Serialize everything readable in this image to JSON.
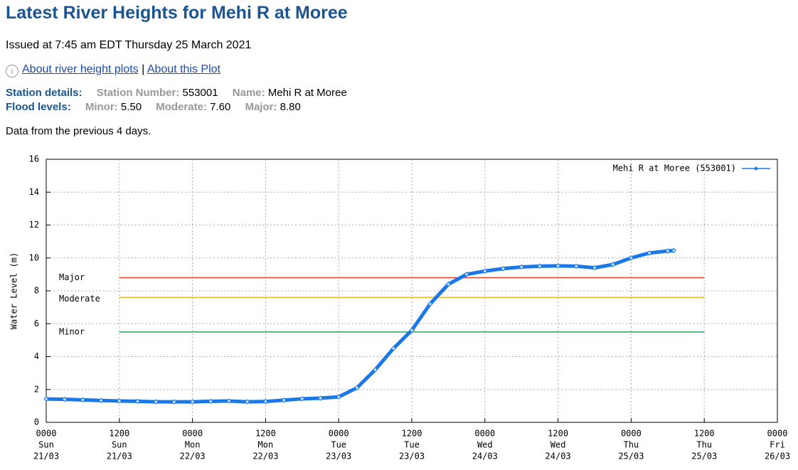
{
  "header": {
    "title": "Latest River Heights for Mehi R at Moree",
    "issued": "Issued at 7:45 am EDT Thursday 25 March 2021",
    "links": [
      "About river height plots",
      "About this Plot"
    ],
    "separator": "|"
  },
  "station": {
    "label": "Station details:",
    "number_label": "Station Number:",
    "number": "553001",
    "name_label": "Name:",
    "name": "Mehi R at Moree"
  },
  "flood_levels": {
    "label": "Flood levels:",
    "levels": [
      {
        "name": "Minor:",
        "value": "5.50"
      },
      {
        "name": "Moderate:",
        "value": "7.60"
      },
      {
        "name": "Major:",
        "value": "8.80"
      }
    ]
  },
  "note": "Data from the previous 4 days.",
  "chart_data": {
    "type": "line",
    "y_label": "Water Level (m)",
    "x": [
      "21/03 0000",
      "21/03 0300",
      "21/03 0600",
      "21/03 0900",
      "21/03 1200",
      "21/03 1500",
      "21/03 1800",
      "21/03 2100",
      "22/03 0000",
      "22/03 0300",
      "22/03 0600",
      "22/03 0900",
      "22/03 1200",
      "22/03 1500",
      "22/03 1800",
      "22/03 2100",
      "23/03 0000",
      "23/03 0300",
      "23/03 0600",
      "23/03 0900",
      "23/03 1200",
      "23/03 1500",
      "23/03 1800",
      "23/03 2100",
      "24/03 0000",
      "24/03 0300",
      "24/03 0600",
      "24/03 0900",
      "24/03 1200",
      "24/03 1500",
      "24/03 1800",
      "24/03 2100",
      "25/03 0000",
      "25/03 0300",
      "25/03 0600",
      "25/03 0700"
    ],
    "series": [
      {
        "name": "Mehi R at Moree (553001)",
        "color": "#1a78e8",
        "values": [
          1.42,
          1.4,
          1.37,
          1.33,
          1.3,
          1.28,
          1.25,
          1.25,
          1.25,
          1.28,
          1.3,
          1.25,
          1.27,
          1.35,
          1.43,
          1.47,
          1.55,
          2.1,
          3.2,
          4.5,
          5.6,
          7.2,
          8.4,
          9.0,
          9.2,
          9.35,
          9.45,
          9.5,
          9.52,
          9.5,
          9.4,
          9.6,
          10.0,
          10.3,
          10.42,
          10.45
        ]
      }
    ],
    "xlim": [
      "21/03 0000",
      "26/03 0000"
    ],
    "xticks": [
      {
        "value": "21/03 0000",
        "label": [
          "0000",
          "Sun",
          "21/03"
        ]
      },
      {
        "value": "21/03 1200",
        "label": [
          "1200",
          "Sun",
          "21/03"
        ]
      },
      {
        "value": "22/03 0000",
        "label": [
          "0000",
          "Mon",
          "22/03"
        ]
      },
      {
        "value": "22/03 1200",
        "label": [
          "1200",
          "Mon",
          "22/03"
        ]
      },
      {
        "value": "23/03 0000",
        "label": [
          "0000",
          "Tue",
          "23/03"
        ]
      },
      {
        "value": "23/03 1200",
        "label": [
          "1200",
          "Tue",
          "23/03"
        ]
      },
      {
        "value": "24/03 0000",
        "label": [
          "0000",
          "Wed",
          "24/03"
        ]
      },
      {
        "value": "24/03 1200",
        "label": [
          "1200",
          "Wed",
          "24/03"
        ]
      },
      {
        "value": "25/03 0000",
        "label": [
          "0000",
          "Thu",
          "25/03"
        ]
      },
      {
        "value": "25/03 1200",
        "label": [
          "1200",
          "Thu",
          "25/03"
        ]
      },
      {
        "value": "26/03 0000",
        "label": [
          "0000",
          "Fri",
          "26/03"
        ]
      }
    ],
    "ylim": [
      0,
      16
    ],
    "yticks": [
      0,
      2,
      4,
      6,
      8,
      10,
      12,
      14,
      16
    ],
    "grid": true,
    "legend": "top-right",
    "thresholds": [
      {
        "name": "Major",
        "value": 8.8,
        "color": "#e8412c"
      },
      {
        "name": "Moderate",
        "value": 7.6,
        "color": "#f0b428"
      },
      {
        "name": "Minor",
        "value": 5.5,
        "color": "#2ca05a"
      }
    ]
  }
}
